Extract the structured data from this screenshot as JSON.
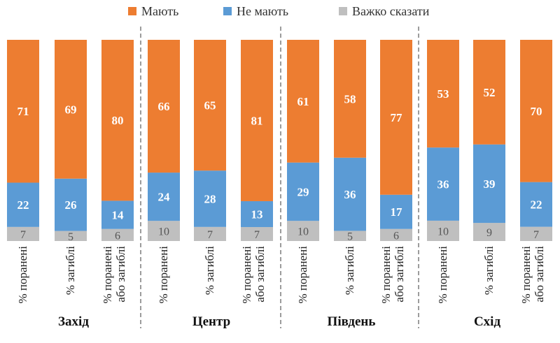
{
  "chart_data": {
    "type": "bar",
    "stacked": true,
    "orientation": "vertical",
    "grid": false,
    "legend_position": "top",
    "legend": [
      {
        "name": "Мають",
        "color": "#ED7D31"
      },
      {
        "name": "Не мають",
        "color": "#5B9BD5"
      },
      {
        "name": "Важко сказати",
        "color": "#BFBFBF"
      }
    ],
    "groups": [
      {
        "name": "Захід",
        "categories": [
          "% поранені",
          "% загиблі",
          [
            "% поранені",
            "або загиблі"
          ]
        ],
        "series": {
          "Мають": [
            71,
            69,
            80
          ],
          "Не мають": [
            22,
            26,
            14
          ],
          "Важко сказати": [
            7,
            5,
            6
          ]
        }
      },
      {
        "name": "Центр",
        "categories": [
          "% поранені",
          "% загиблі",
          [
            "% поранені",
            "або загиблі"
          ]
        ],
        "series": {
          "Мають": [
            66,
            65,
            81
          ],
          "Не мають": [
            24,
            28,
            13
          ],
          "Важко сказати": [
            10,
            7,
            7
          ]
        }
      },
      {
        "name": "Південь",
        "categories": [
          "% поранені",
          "% загиблі",
          [
            "% поранені",
            "або загиблі"
          ]
        ],
        "series": {
          "Мають": [
            61,
            58,
            77
          ],
          "Не мають": [
            29,
            36,
            17
          ],
          "Важко сказати": [
            10,
            5,
            6
          ]
        }
      },
      {
        "name": "Схід",
        "categories": [
          "% поранені",
          "% загиблі",
          [
            "% поранені",
            "або загиблі"
          ]
        ],
        "series": {
          "Мають": [
            53,
            52,
            70
          ],
          "Не мають": [
            36,
            39,
            22
          ],
          "Важко сказати": [
            10,
            9,
            7
          ]
        }
      }
    ],
    "ylim": [
      0,
      100
    ]
  }
}
